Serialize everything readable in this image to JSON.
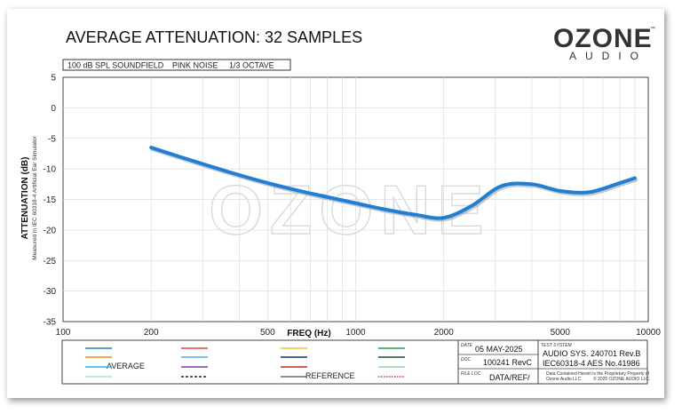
{
  "chart_data": {
    "type": "line",
    "title": "AVERAGE ATTENUATION: 32 SAMPLES",
    "conditions": [
      "100 dB SPL SOUNDFIELD",
      "PINK NOISE",
      "1/3 OCTAVE"
    ],
    "xlabel": "FREQ (Hz)",
    "ylabel": "ATTENUATION (dB)",
    "ysublabel": "Measured in IEC 60318-4 Artificial Ear Simulator",
    "xscale": "log",
    "xlim": [
      100,
      10000
    ],
    "ylim": [
      -35,
      5
    ],
    "xticks": [
      "100",
      "200",
      "500",
      "1000",
      "2000",
      "5000",
      "10000"
    ],
    "yticks": [
      "5",
      "0",
      "-5",
      "-10",
      "-15",
      "-20",
      "-25",
      "-30",
      "-35"
    ],
    "grid": true,
    "series": [
      {
        "name": "AVERAGE",
        "color": "#1f7fd6",
        "x": [
          200,
          250,
          315,
          400,
          500,
          630,
          800,
          1000,
          1250,
          1600,
          2000,
          2500,
          3150,
          4000,
          5000,
          6300,
          8000,
          9000
        ],
        "y": [
          -6.5,
          -8.0,
          -9.5,
          -11.0,
          -12.3,
          -13.5,
          -14.6,
          -15.6,
          -16.6,
          -17.5,
          -18.0,
          -16.0,
          -12.8,
          -12.5,
          -13.6,
          -13.8,
          -12.3,
          -11.5
        ]
      }
    ]
  },
  "brand": {
    "name": "OZONE",
    "sub": "AUDIO",
    "tm": "™",
    "watermark": "OZONE"
  },
  "legend": {
    "labels": {
      "average": "AVERAGE",
      "reference": "REFERENCE"
    },
    "colors": {
      "c1": [
        "#1f7fd6",
        "#f08a1c",
        "#22b5e8",
        "#a9dde8"
      ],
      "c2": [
        "#e0453a",
        "#4fb3d9",
        "#7d3fa8",
        "#222222"
      ],
      "c3": [
        "#f2c12e",
        "#1c2f6b",
        "#c62828",
        "#6b6b6b"
      ],
      "c4": [
        "#2e9a4b",
        "#1d4f2a",
        "#8fd6b0",
        "#e53935"
      ]
    }
  },
  "meta": {
    "date_label": "DATE",
    "date": "05 MAY-2025",
    "doc_label": "DOC",
    "doc": "100241 RevC",
    "file_label": "FILE LOC.",
    "file": "DATA/REF/",
    "system_label": "TEST SYSTEM",
    "system1": "AUDIO SYS. 240701 Rev.B",
    "system2": "IEC60318-4 AES No.41986",
    "notice1": "Data Contained Herein is the Proprietary Property of",
    "notice2": "Ozone Audio LLC.",
    "notice3": "© 2025 OZONE AUDIO LLC."
  }
}
